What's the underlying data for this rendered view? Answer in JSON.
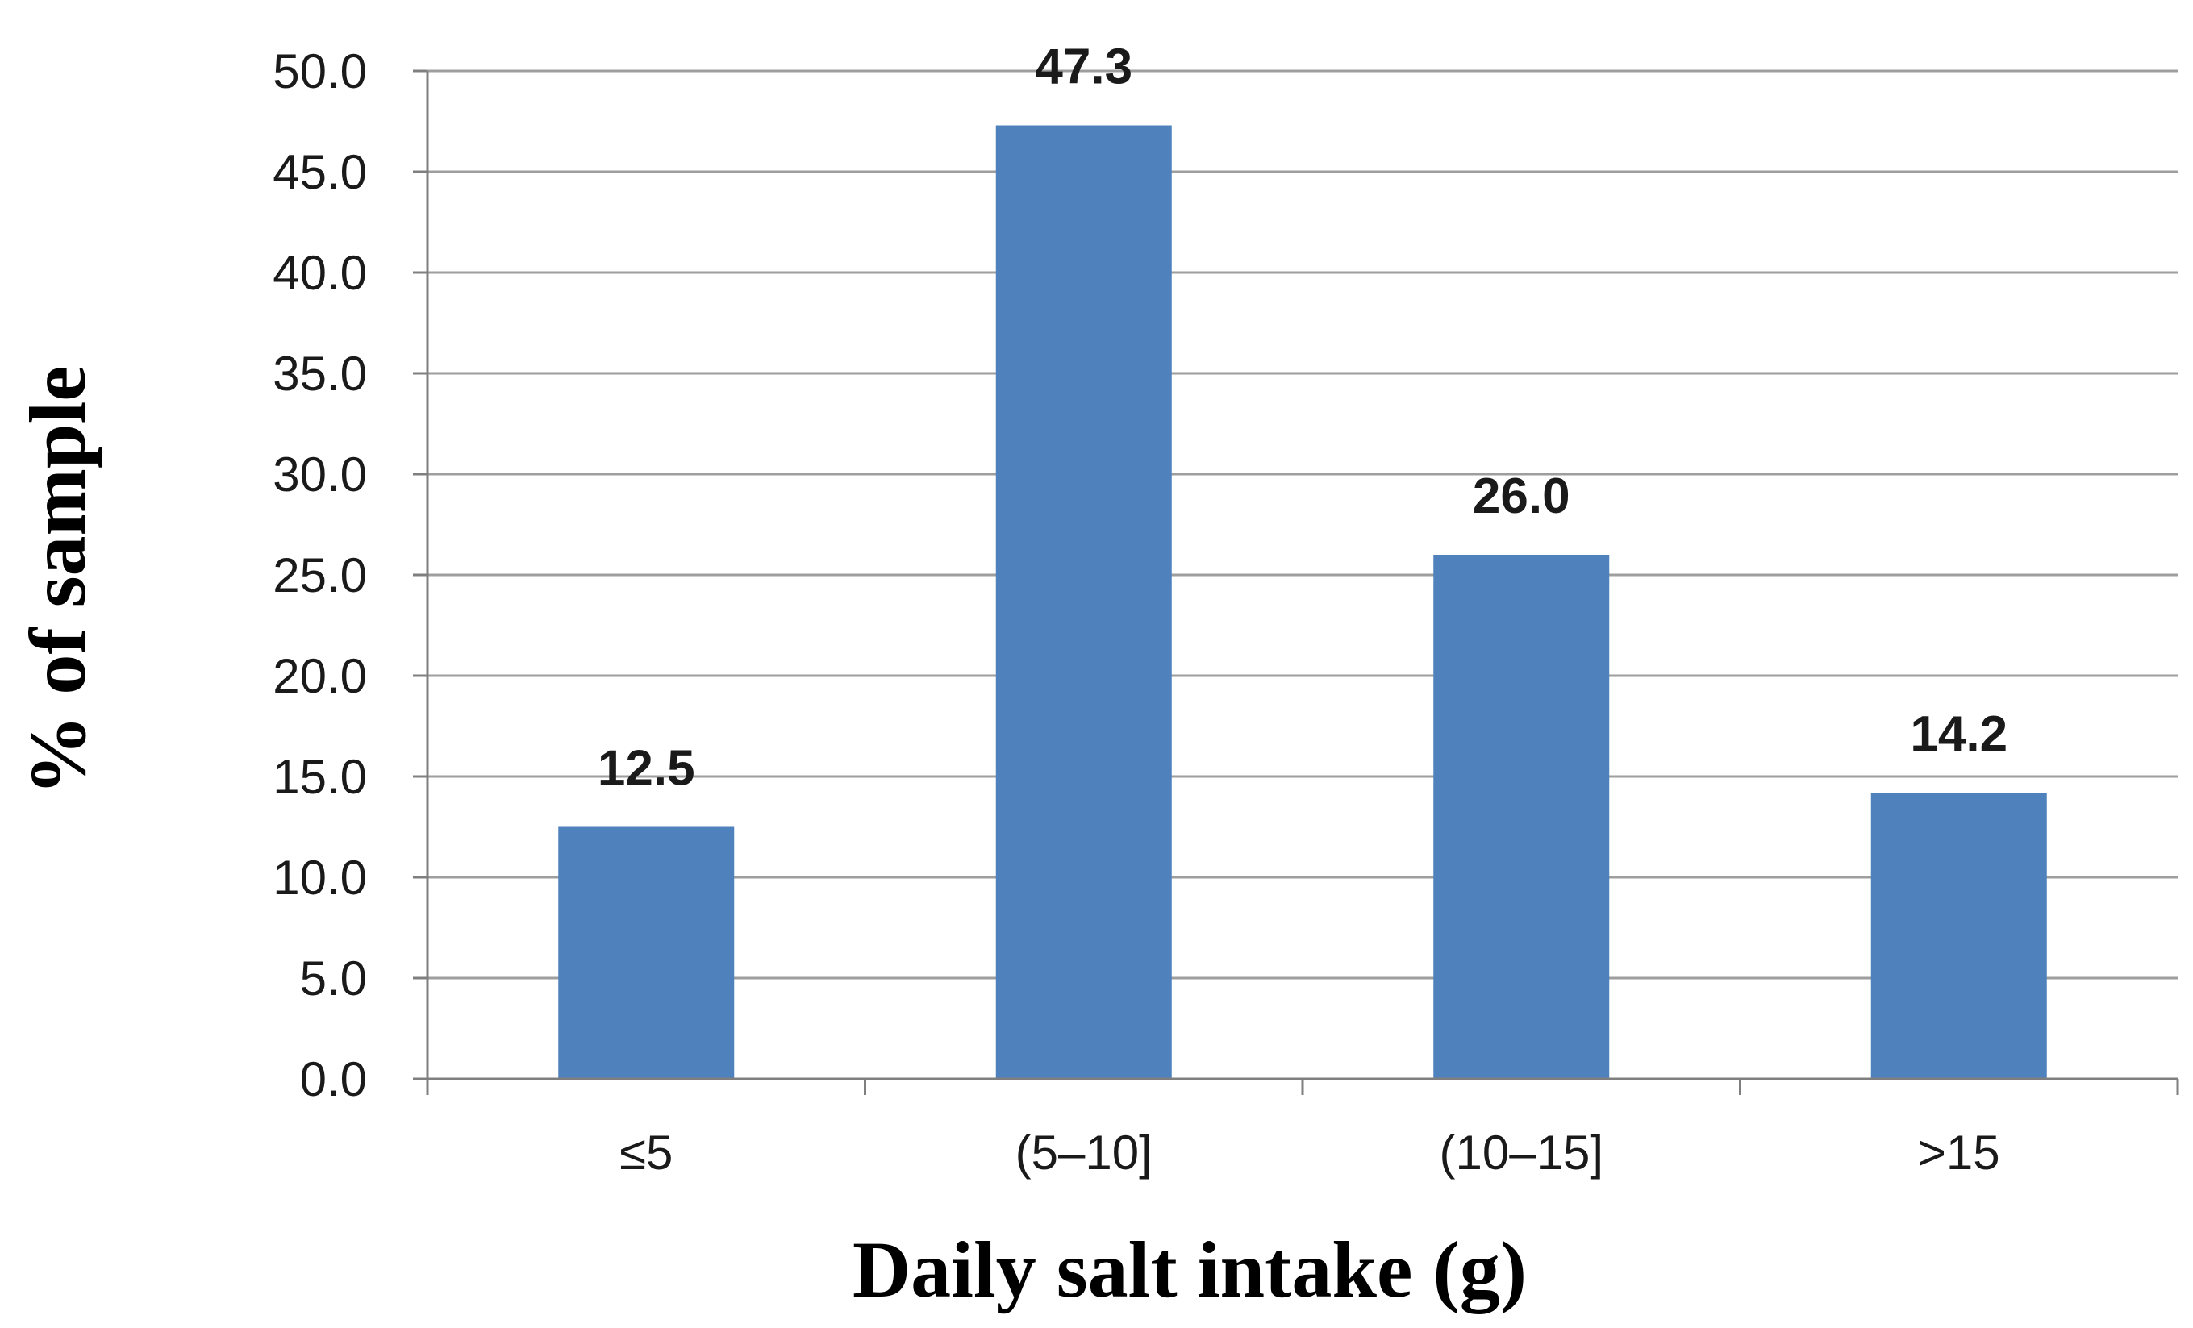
{
  "chart_data": {
    "type": "bar",
    "categories": [
      "≤5",
      "(5–10]",
      "(10–15]",
      ">15"
    ],
    "values": [
      12.5,
      47.3,
      26.0,
      14.2
    ],
    "data_labels": [
      "12.5",
      "47.3",
      "26.0",
      "14.2"
    ],
    "title": "",
    "xlabel": "Daily salt intake (g)",
    "ylabel": "% of sample",
    "ylim": [
      0,
      50
    ],
    "yticks": [
      0,
      5,
      10,
      15,
      20,
      25,
      30,
      35,
      40,
      45,
      50
    ],
    "ytick_labels": [
      "0.0",
      "5.0",
      "10.0",
      "15.0",
      "20.0",
      "25.0",
      "30.0",
      "35.0",
      "40.0",
      "45.0",
      "50.0"
    ],
    "grid": true,
    "legend": "none",
    "colors": {
      "bar": "#4f81bd",
      "grid": "#9e9e9e",
      "axis": "#7f7f7f"
    }
  }
}
